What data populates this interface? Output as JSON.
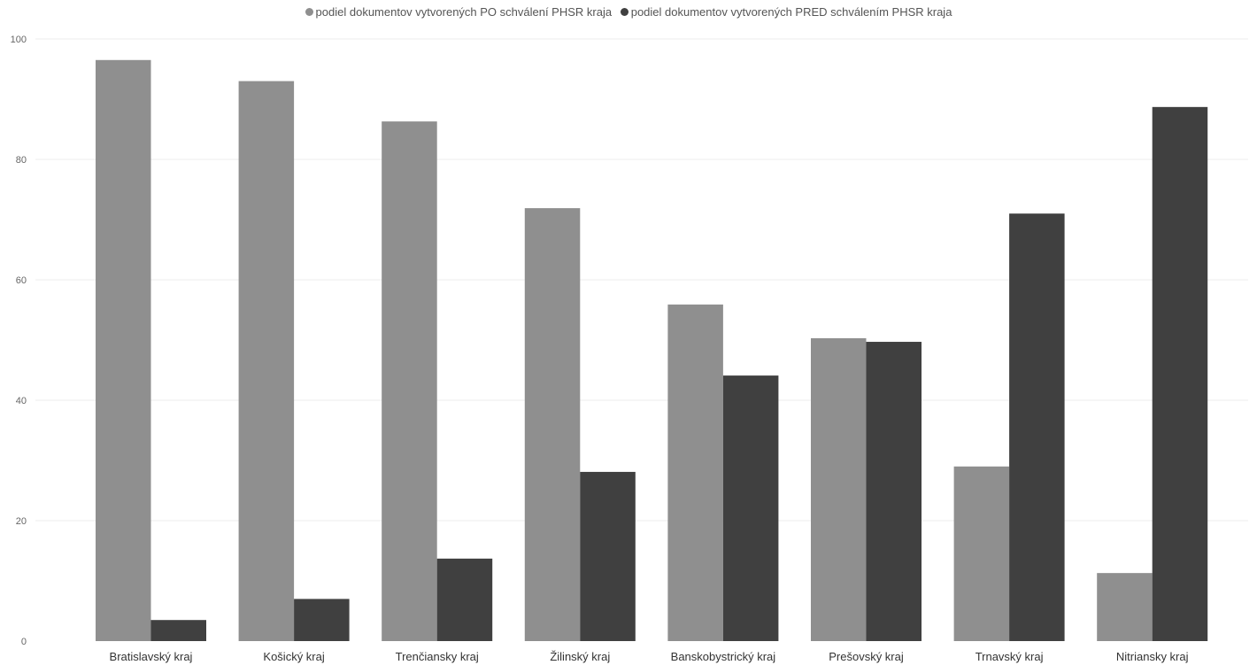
{
  "chart_data": {
    "type": "bar",
    "title": "",
    "xlabel": "",
    "ylabel": "",
    "ylim": [
      0,
      100
    ],
    "yticks": [
      0,
      20,
      40,
      60,
      80,
      100
    ],
    "grid": true,
    "legend_position": "top-center",
    "categories": [
      "Bratislavský kraj",
      "Košický kraj",
      "Trenčiansky kraj",
      "Žilinský kraj",
      "Banskobystrický kraj",
      "Prešovský kraj",
      "Trnavský kraj",
      "Nitriansky kraj"
    ],
    "series": [
      {
        "name": "podiel dokumentov vytvorených PO schválení PHSR kraja",
        "color": "#8f8f8f",
        "values": [
          96.5,
          93,
          86.3,
          71.9,
          55.9,
          50.3,
          29,
          11.3
        ]
      },
      {
        "name": "podiel dokumentov vytvorených PRED schválením PHSR kraja",
        "color": "#404040",
        "values": [
          3.5,
          7,
          13.7,
          28.1,
          44.1,
          49.7,
          71,
          88.7
        ]
      }
    ]
  }
}
